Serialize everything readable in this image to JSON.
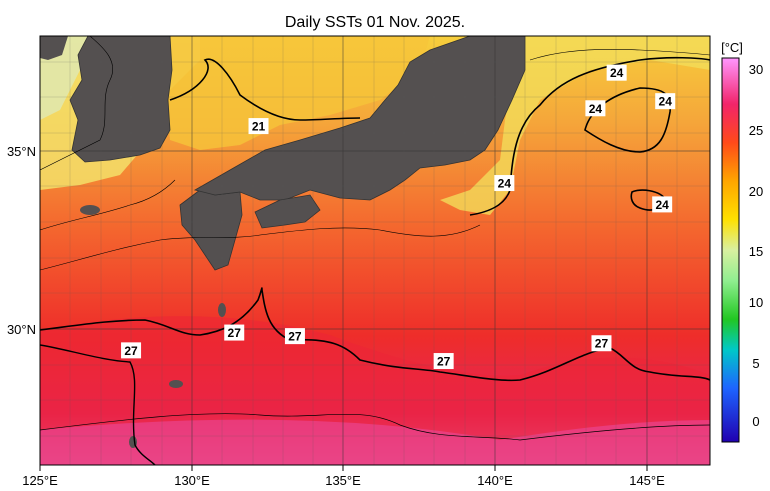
{
  "title": "Daily SSTs 01 Nov. 2025.",
  "x_axis": {
    "ticks": [
      "125°E",
      "130°E",
      "135°E",
      "140°E",
      "145°E"
    ]
  },
  "y_axis": {
    "ticks": [
      "35°N",
      "30°N"
    ]
  },
  "colorbar": {
    "unit": "[°C]",
    "ticks": [
      "30",
      "25",
      "20",
      "15",
      "10",
      "5",
      "0"
    ]
  },
  "contour_labels": [
    {
      "text": "24",
      "lon": 144.0,
      "lat": 37.2
    },
    {
      "text": "24",
      "lon": 143.3,
      "lat": 36.2
    },
    {
      "text": "24",
      "lon": 145.6,
      "lat": 36.4
    },
    {
      "text": "24",
      "lon": 140.3,
      "lat": 34.1
    },
    {
      "text": "24",
      "lon": 145.5,
      "lat": 33.5
    },
    {
      "text": "21",
      "lon": 132.2,
      "lat": 35.7
    },
    {
      "text": "27",
      "lon": 128.0,
      "lat": 29.4
    },
    {
      "text": "27",
      "lon": 131.4,
      "lat": 29.9
    },
    {
      "text": "27",
      "lon": 133.4,
      "lat": 29.8
    },
    {
      "text": "27",
      "lon": 138.3,
      "lat": 29.1
    },
    {
      "text": "27",
      "lon": 143.5,
      "lat": 29.6
    }
  ]
}
